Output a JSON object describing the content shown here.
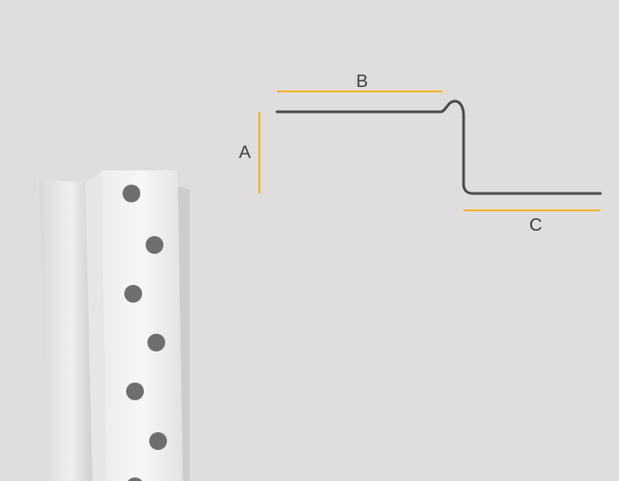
{
  "diagram": {
    "labels": {
      "a": "A",
      "b": "B",
      "c": "C"
    }
  },
  "colors": {
    "background": "#dfdddd",
    "profile_line": "#4a4a4a",
    "dimension_line": "#f2b315",
    "product_face": "#f2f2f2",
    "product_shadow": "#c9c9c9",
    "holes": "#6e6e6e"
  },
  "icons": {
    "product_photo": "perforated-angle-bead-strip"
  }
}
